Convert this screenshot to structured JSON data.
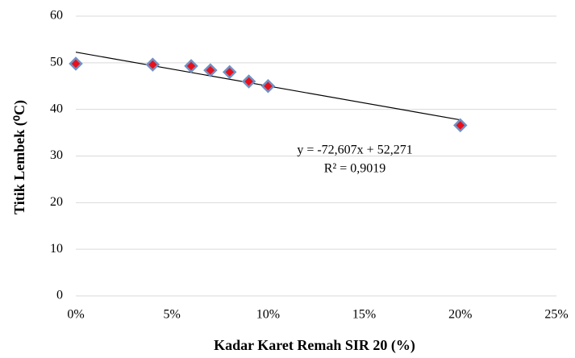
{
  "chart_data": {
    "type": "scatter",
    "x_label": "Kadar Karet Remah SIR 20 (%)",
    "y_label": "Titik Lembek (⁰C)",
    "series": [
      {
        "name": "Titik Lembek",
        "color": "#e8101a",
        "edge_color": "#7092c4",
        "x": [
          0,
          0.04,
          0.06,
          0.07,
          0.08,
          0.09,
          0.1,
          0.2
        ],
        "values": [
          49.8,
          49.6,
          49.3,
          48.4,
          48.0,
          46.0,
          45.0,
          36.6
        ]
      }
    ],
    "trendline": {
      "slope": -72.607,
      "intercept": 52.271,
      "color": "#000000",
      "equation": "y = -72,607x + 52,271",
      "r2": "R² = 0,9019"
    },
    "xlim": [
      0,
      0.25
    ],
    "xticks": [
      {
        "value": 0,
        "label": "0%"
      },
      {
        "value": 0.05,
        "label": "5%"
      },
      {
        "value": 0.1,
        "label": "10%"
      },
      {
        "value": 0.15,
        "label": "15%"
      },
      {
        "value": 0.2,
        "label": "20%"
      },
      {
        "value": 0.25,
        "label": "25%"
      }
    ],
    "ylim": [
      0,
      60
    ],
    "yticks": [
      0,
      10,
      20,
      30,
      40,
      50,
      60
    ],
    "grid": true
  }
}
